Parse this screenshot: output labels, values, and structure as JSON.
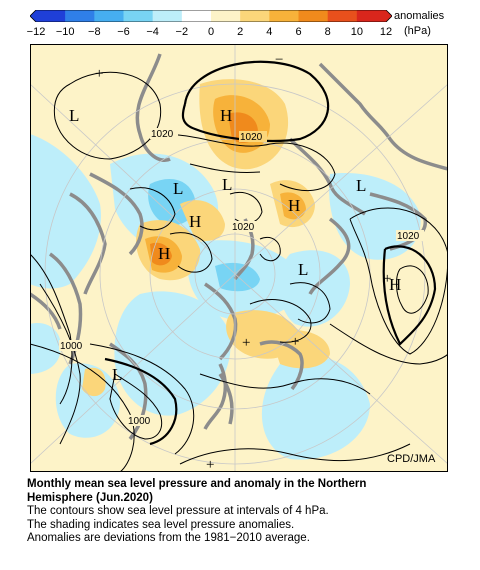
{
  "colorbar": {
    "ticks": [
      "−12",
      "−10",
      "−8",
      "−6",
      "−4",
      "−2",
      "0",
      "2",
      "4",
      "6",
      "8",
      "10",
      "12"
    ],
    "colors": [
      "#1f3fd8",
      "#2f7fe8",
      "#46aef0",
      "#78d4f4",
      "#bdeefa",
      "#ffffff",
      "#fdf3c8",
      "#fbd67a",
      "#f7b23a",
      "#f08a1c",
      "#e8501c",
      "#d9261c"
    ],
    "label_line1": "anomalies",
    "label_line2": "(hPa)"
  },
  "map": {
    "high_symbol": "H",
    "low_symbol": "L",
    "plus_symbol": "+",
    "minus_symbol": "−",
    "contour_labels": [
      "1020",
      "1020",
      "1020",
      "1020",
      "1000",
      "1000"
    ],
    "credit": "CPD/JMA",
    "colors": {
      "warm": "#fbd67a",
      "warm2": "#f7b23a",
      "hot": "#f08a1c",
      "cool": "#bdeefa",
      "cool2": "#78d4f4",
      "land": "#8c8c8c",
      "bg": "#fdf3c8"
    }
  },
  "caption": {
    "title_line1": "Monthly mean sea level pressure and anomaly in the Northern",
    "title_line2": "Hemisphere (Jun.2020)",
    "line1": "The contours show sea level pressure at intervals of 4 hPa.",
    "line2": "The shading indicates sea level pressure anomalies.",
    "line3": "Anomalies are deviations from the 1981−2010 average."
  }
}
